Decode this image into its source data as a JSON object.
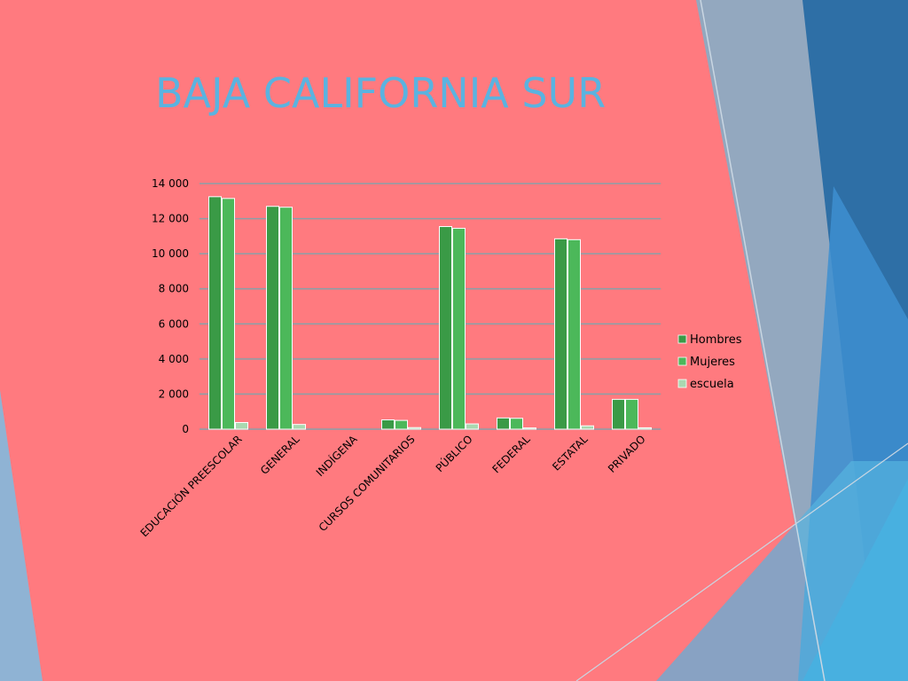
{
  "slide": {
    "title": "BAJA CALIFORNIA SUR"
  },
  "colors": {
    "background": "#ff7a7f",
    "title": "#5ab3e0",
    "hombres": "#3a9a46",
    "mujeres": "#4cb85a",
    "escuela": "#a9d8b0",
    "gridline": "#8aa0a8"
  },
  "chart_data": {
    "type": "bar",
    "title": "",
    "xlabel": "",
    "ylabel": "",
    "ylim": [
      0,
      14000
    ],
    "yticks": [
      0,
      2000,
      4000,
      6000,
      8000,
      10000,
      12000,
      14000
    ],
    "ytick_labels": [
      "0",
      "2 000",
      "4 000",
      "6 000",
      "8 000",
      "10 000",
      "12 000",
      "14 000"
    ],
    "grid": true,
    "legend_position": "right",
    "categories": [
      "EDUCACIÓN PREESCOLAR",
      "GENERAL",
      "INDÍGENA",
      "CURSOS COMUNITARIOS",
      "PÚBLICO",
      "FEDERAL",
      "ESTATAL",
      "PRIVADO"
    ],
    "series": [
      {
        "name": "Hombres",
        "values": [
          13250,
          12700,
          0,
          530,
          11550,
          640,
          10850,
          1700
        ]
      },
      {
        "name": "Mujeres",
        "values": [
          13150,
          12650,
          0,
          500,
          11450,
          620,
          10800,
          1700
        ]
      },
      {
        "name": "escuela",
        "values": [
          380,
          270,
          0,
          90,
          300,
          70,
          190,
          80
        ]
      }
    ]
  }
}
